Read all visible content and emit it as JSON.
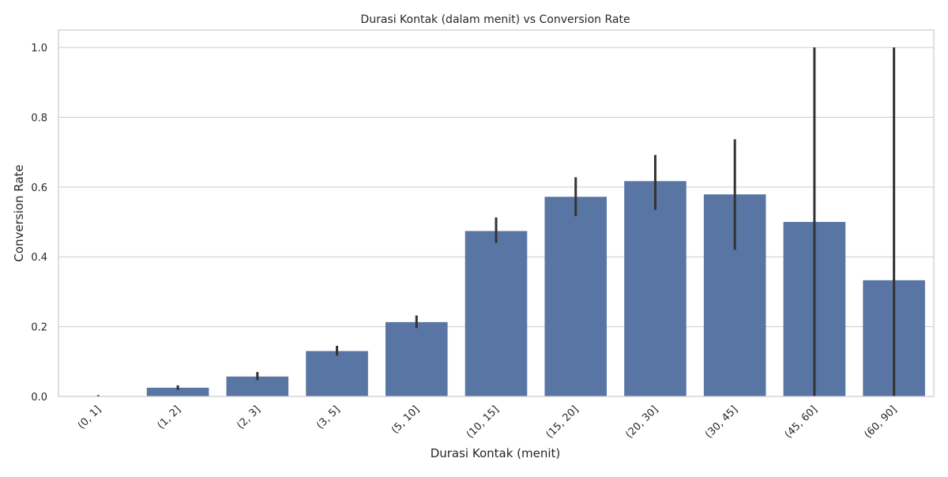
{
  "chart_data": {
    "type": "bar",
    "title": "Durasi Kontak (dalam menit) vs Conversion Rate",
    "xlabel": "Durasi Kontak (menit)",
    "ylabel": "Conversion Rate",
    "categories": [
      "(0, 1]",
      "(1, 2]",
      "(2, 3]",
      "(3, 5]",
      "(5, 10]",
      "(10, 15]",
      "(15, 20]",
      "(20, 30]",
      "(30, 45]",
      "(45, 60]",
      "(60, 90]"
    ],
    "values": [
      0.0,
      0.025,
      0.057,
      0.13,
      0.213,
      0.474,
      0.572,
      0.617,
      0.579,
      0.5,
      0.333
    ],
    "error_low": [
      0.0,
      0.019,
      0.047,
      0.117,
      0.196,
      0.44,
      0.517,
      0.535,
      0.42,
      0.0,
      0.0
    ],
    "error_high": [
      0.004,
      0.032,
      0.07,
      0.145,
      0.232,
      0.513,
      0.628,
      0.692,
      0.737,
      1.0,
      1.0
    ],
    "ylim": [
      0,
      1.05
    ],
    "yticks": [
      0.0,
      0.2,
      0.4,
      0.6,
      0.8,
      1.0
    ],
    "ytick_labels": [
      "0.0",
      "0.2",
      "0.4",
      "0.6",
      "0.8",
      "1.0"
    ],
    "grid": "horizontal",
    "colors": {
      "bar": "#5875a4",
      "error_bar": "#333333",
      "grid": "#cccccc",
      "axes_edge": "#cccccc",
      "text": "#262626"
    }
  }
}
